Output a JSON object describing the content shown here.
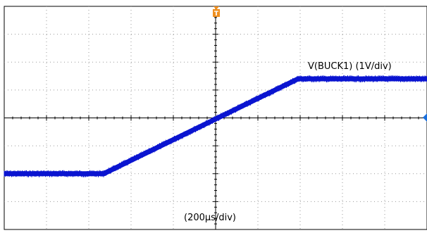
{
  "chart_data": {
    "type": "line",
    "title": "",
    "xlabel": "(200µs/div)",
    "ylabel": "",
    "x_divisions": 10,
    "y_divisions": 8,
    "xlim": [
      -5,
      5
    ],
    "ylim": [
      -4,
      4
    ],
    "grid": true,
    "trigger_marker": "T",
    "series": [
      {
        "name": "V(BUCK1) (1V/div)",
        "color": "#0a14d0",
        "x": [
          -5.0,
          -2.65,
          1.95,
          5.0
        ],
        "y": [
          -2.0,
          -2.0,
          1.4,
          1.4
        ]
      }
    ]
  },
  "colors": {
    "trace": "#0a14d0",
    "trigger_marker": "#ef8f1f",
    "grid": "#9a9a9a",
    "axis": "#000000",
    "level_marker": "#1a6fdc"
  },
  "icons": {
    "trigger": "trigger-marker-icon",
    "level": "level-marker-icon"
  }
}
